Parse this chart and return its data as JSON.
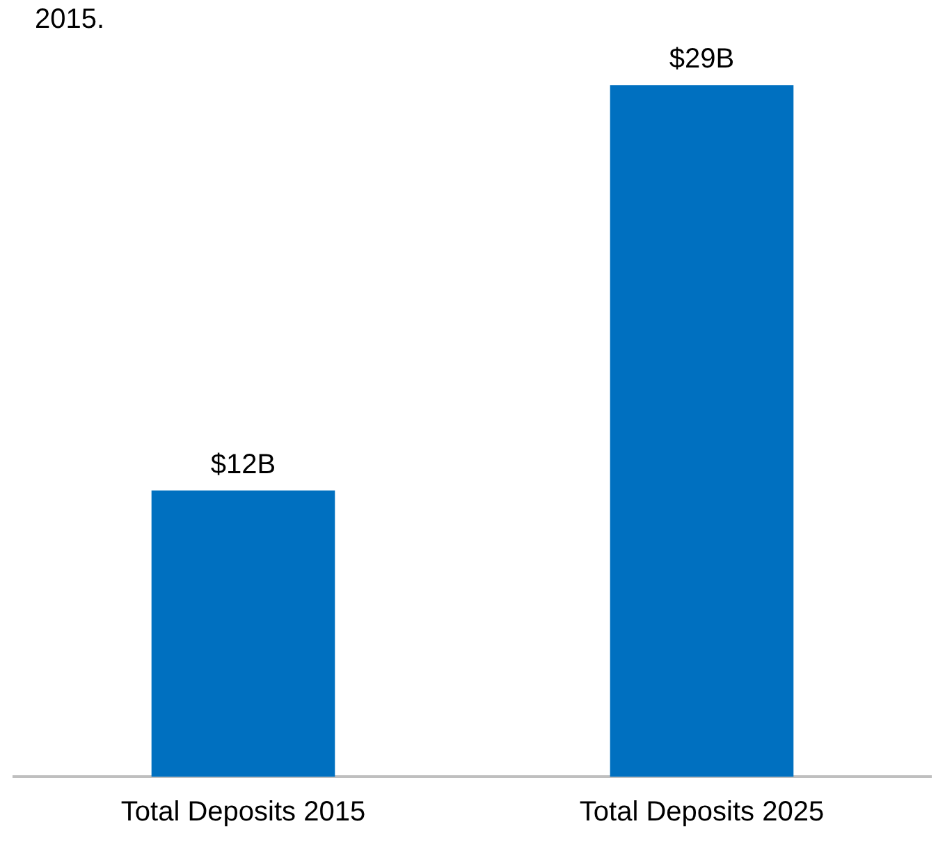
{
  "chart_data": {
    "type": "bar",
    "annotations": [
      "2015."
    ],
    "categories": [
      "Total Deposits 2015",
      "Total Deposits 2025"
    ],
    "values": [
      12,
      29
    ],
    "value_labels": [
      "$12B",
      "$29B"
    ],
    "color": "#0070c0"
  }
}
